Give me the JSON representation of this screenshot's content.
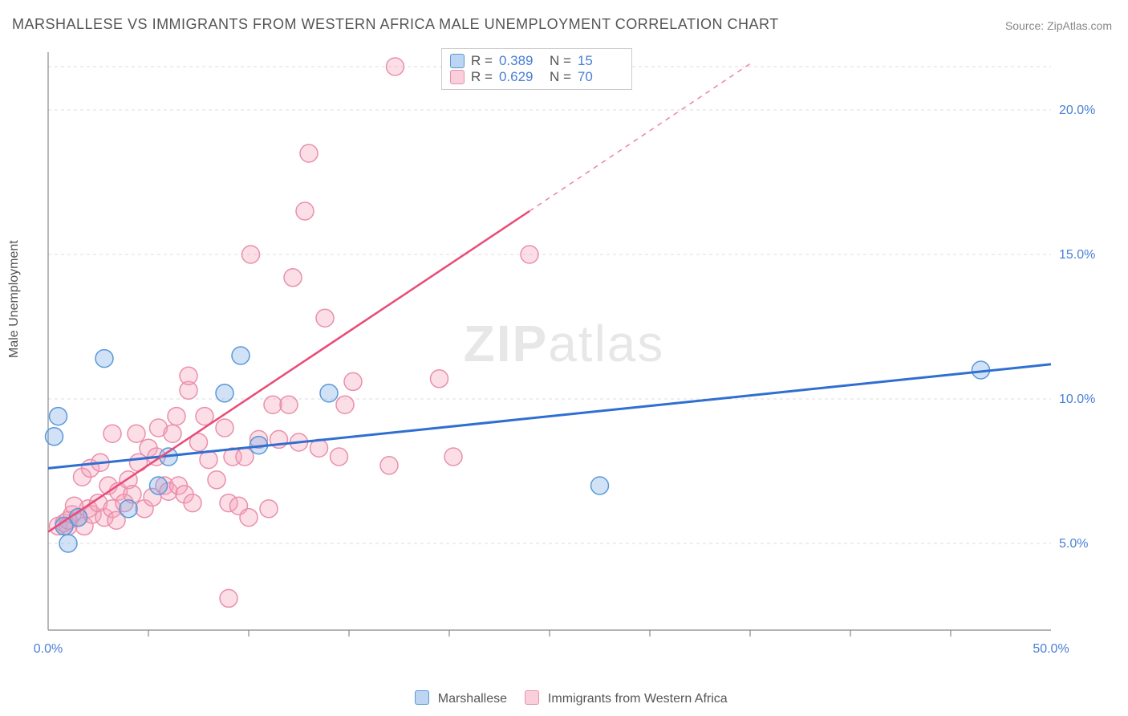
{
  "title": "MARSHALLESE VS IMMIGRANTS FROM WESTERN AFRICA MALE UNEMPLOYMENT CORRELATION CHART",
  "source_prefix": "Source: ",
  "source_name": "ZipAtlas.com",
  "y_axis_label": "Male Unemployment",
  "watermark_bold": "ZIP",
  "watermark_rest": "atlas",
  "chart": {
    "type": "scatter",
    "xlim": [
      0,
      50
    ],
    "ylim": [
      2,
      22
    ],
    "x_ticks": [
      0,
      50
    ],
    "x_tick_labels": [
      "0.0%",
      "50.0%"
    ],
    "x_minor_ticks": [
      5,
      10,
      15,
      20,
      25,
      30,
      35,
      40,
      45
    ],
    "y_ticks": [
      5,
      10,
      15,
      20
    ],
    "y_tick_labels": [
      "5.0%",
      "10.0%",
      "15.0%",
      "20.0%"
    ],
    "background_color": "#ffffff",
    "grid_color": "#dcdcdc",
    "axis_color": "#888888",
    "marker_radius": 11,
    "series": [
      {
        "name": "Marshallese",
        "color_fill": "rgba(122,172,230,0.35)",
        "color_stroke": "#5a98d8",
        "trend_color": "#2f6fd0",
        "r_value": "0.389",
        "n_value": "15",
        "trend": {
          "x1": 0,
          "y1": 7.6,
          "x2": 50,
          "y2": 11.2
        },
        "points": [
          [
            0.3,
            8.7
          ],
          [
            0.5,
            9.4
          ],
          [
            1.0,
            5.0
          ],
          [
            2.8,
            11.4
          ],
          [
            1.5,
            5.9
          ],
          [
            0.8,
            5.6
          ],
          [
            8.8,
            10.2
          ],
          [
            9.6,
            11.5
          ],
          [
            10.5,
            8.4
          ],
          [
            14.0,
            10.2
          ],
          [
            27.5,
            7.0
          ],
          [
            46.5,
            11.0
          ],
          [
            4.0,
            6.2
          ],
          [
            5.5,
            7.0
          ],
          [
            6.0,
            8.0
          ]
        ]
      },
      {
        "name": "Immigrants from Western Africa",
        "color_fill": "rgba(245,160,185,0.35)",
        "color_stroke": "#ea8fab",
        "trend_color": "#e94b77",
        "r_value": "0.629",
        "n_value": "70",
        "trend": {
          "x1": 0,
          "y1": 5.4,
          "x2": 24,
          "y2": 16.5
        },
        "trend_dash": {
          "x1": 24,
          "y1": 16.5,
          "x2": 35,
          "y2": 21.6
        },
        "points": [
          [
            0.5,
            5.6
          ],
          [
            0.8,
            5.7
          ],
          [
            1.0,
            5.6
          ],
          [
            1.2,
            6.0
          ],
          [
            1.5,
            5.9
          ],
          [
            1.8,
            5.6
          ],
          [
            2.0,
            6.2
          ],
          [
            2.2,
            6.0
          ],
          [
            2.5,
            6.4
          ],
          [
            2.8,
            5.9
          ],
          [
            3.0,
            7.0
          ],
          [
            3.2,
            6.2
          ],
          [
            3.5,
            6.8
          ],
          [
            3.8,
            6.4
          ],
          [
            4.0,
            7.2
          ],
          [
            4.2,
            6.7
          ],
          [
            4.5,
            7.8
          ],
          [
            4.8,
            6.2
          ],
          [
            5.0,
            8.3
          ],
          [
            5.2,
            6.6
          ],
          [
            5.5,
            9.0
          ],
          [
            5.8,
            7.0
          ],
          [
            6.0,
            6.8
          ],
          [
            6.2,
            8.8
          ],
          [
            6.5,
            7.0
          ],
          [
            6.8,
            6.7
          ],
          [
            7.0,
            10.3
          ],
          [
            7.2,
            6.4
          ],
          [
            7.5,
            8.5
          ],
          [
            7.8,
            9.4
          ],
          [
            8.0,
            7.9
          ],
          [
            8.4,
            7.2
          ],
          [
            8.8,
            9.0
          ],
          [
            7.0,
            10.8
          ],
          [
            9.0,
            6.4
          ],
          [
            9.2,
            8.0
          ],
          [
            9.5,
            6.3
          ],
          [
            9.8,
            8.0
          ],
          [
            10.0,
            5.9
          ],
          [
            10.1,
            15.0
          ],
          [
            10.5,
            8.6
          ],
          [
            3.2,
            8.8
          ],
          [
            11.0,
            6.2
          ],
          [
            11.2,
            9.8
          ],
          [
            11.5,
            8.6
          ],
          [
            12.0,
            9.8
          ],
          [
            12.2,
            14.2
          ],
          [
            12.5,
            8.5
          ],
          [
            12.8,
            16.5
          ],
          [
            13.0,
            18.5
          ],
          [
            13.5,
            8.3
          ],
          [
            13.8,
            12.8
          ],
          [
            14.5,
            8.0
          ],
          [
            14.8,
            9.8
          ],
          [
            15.2,
            10.6
          ],
          [
            9.0,
            3.1
          ],
          [
            17.0,
            7.7
          ],
          [
            17.3,
            21.5
          ],
          [
            19.5,
            10.7
          ],
          [
            20.2,
            8.0
          ],
          [
            24.0,
            15.0
          ],
          [
            1.0,
            5.8
          ],
          [
            1.3,
            6.3
          ],
          [
            1.7,
            7.3
          ],
          [
            2.1,
            7.6
          ],
          [
            2.6,
            7.8
          ],
          [
            3.4,
            5.8
          ],
          [
            4.4,
            8.8
          ],
          [
            5.4,
            8.0
          ],
          [
            6.4,
            9.4
          ]
        ]
      }
    ]
  },
  "legend": {
    "r_label": "R =",
    "n_label": "N ="
  }
}
